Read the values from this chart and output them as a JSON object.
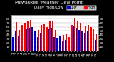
{
  "title": "Milwaukee Weather Dew Point",
  "subtitle": "Daily High/Low",
  "background_color": "#000000",
  "plot_bg_color": "#ffffff",
  "bar_width": 0.38,
  "days": [
    1,
    2,
    3,
    4,
    5,
    6,
    7,
    8,
    9,
    10,
    11,
    12,
    13,
    14,
    15,
    16,
    17,
    18,
    19,
    20,
    21,
    22,
    23,
    24,
    25,
    26,
    27,
    28,
    29,
    30,
    31
  ],
  "high_values": [
    55,
    72,
    52,
    65,
    70,
    75,
    78,
    80,
    74,
    52,
    65,
    68,
    60,
    74,
    76,
    52,
    50,
    55,
    40,
    42,
    35,
    65,
    82,
    76,
    70,
    68,
    62,
    65,
    60,
    55,
    42
  ],
  "low_values": [
    35,
    50,
    38,
    45,
    52,
    56,
    58,
    60,
    50,
    35,
    45,
    52,
    42,
    56,
    58,
    35,
    32,
    38,
    25,
    28,
    18,
    48,
    63,
    58,
    52,
    50,
    45,
    48,
    42,
    38,
    28
  ],
  "high_color": "#ff0000",
  "low_color": "#0000cc",
  "tick_color": "#000000",
  "grid_color": "#aaaaaa",
  "ylim": [
    0,
    90
  ],
  "yticks": [
    10,
    20,
    30,
    40,
    50,
    60,
    70,
    80
  ],
  "ytick_labels": [
    "10",
    "20",
    "30",
    "40",
    "50",
    "60",
    "70",
    "80"
  ],
  "title_fontsize": 4.5,
  "subtitle_fontsize": 4.0,
  "tick_fontsize": 3.2,
  "legend_fontsize": 3.5,
  "legend_labels": [
    "Low",
    "High"
  ]
}
